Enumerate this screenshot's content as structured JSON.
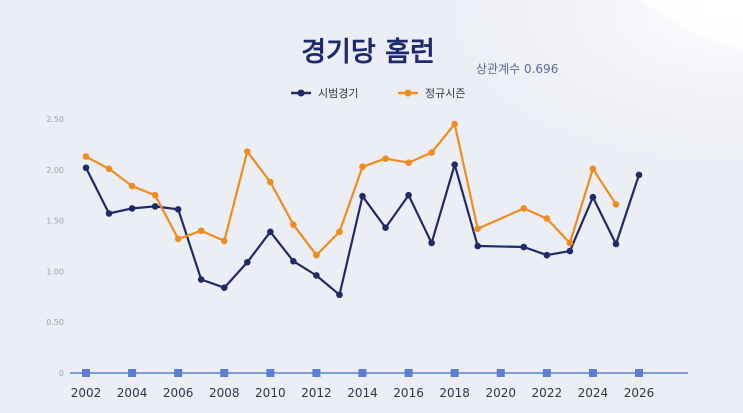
{
  "chart_data": {
    "type": "line",
    "title": "경기당 홈런",
    "subtitle": "상관계수 0.696",
    "legend_position": "top",
    "grid": false,
    "ylim": [
      0,
      2.5
    ],
    "y_ticks": [
      "0",
      "0.50",
      "1.00",
      "1.50",
      "2.00",
      "2.50"
    ],
    "x_ticks": [
      "2002",
      "2004",
      "2006",
      "2008",
      "2010",
      "2012",
      "2014",
      "2016",
      "2018",
      "2020",
      "2022",
      "2024",
      "2026"
    ],
    "x_tick_values": [
      2002,
      2004,
      2006,
      2008,
      2010,
      2012,
      2014,
      2016,
      2018,
      2020,
      2022,
      2024,
      2026
    ],
    "series": [
      {
        "name": "시범경기",
        "color": "#1f2a6b",
        "points": [
          [
            2002,
            2.02
          ],
          [
            2003,
            1.57
          ],
          [
            2004,
            1.62
          ],
          [
            2005,
            1.64
          ],
          [
            2006,
            1.61
          ],
          [
            2007,
            0.92
          ],
          [
            2008,
            0.84
          ],
          [
            2009,
            1.09
          ],
          [
            2010,
            1.39
          ],
          [
            2011,
            1.1
          ],
          [
            2012,
            0.96
          ],
          [
            2013,
            0.77
          ],
          [
            2014,
            1.74
          ],
          [
            2015,
            1.43
          ],
          [
            2016,
            1.75
          ],
          [
            2017,
            1.28
          ],
          [
            2018,
            2.05
          ],
          [
            2019,
            1.25
          ],
          [
            2021,
            1.24
          ],
          [
            2022,
            1.16
          ],
          [
            2023,
            1.2
          ],
          [
            2024,
            1.73
          ],
          [
            2025,
            1.27
          ],
          [
            2026,
            1.95
          ]
        ]
      },
      {
        "name": "정규시즌",
        "color": "#f08c1e",
        "points": [
          [
            2002,
            2.13
          ],
          [
            2003,
            2.01
          ],
          [
            2004,
            1.84
          ],
          [
            2005,
            1.75
          ],
          [
            2006,
            1.32
          ],
          [
            2007,
            1.4
          ],
          [
            2008,
            1.3
          ],
          [
            2009,
            2.18
          ],
          [
            2010,
            1.88
          ],
          [
            2011,
            1.46
          ],
          [
            2012,
            1.16
          ],
          [
            2013,
            1.39
          ],
          [
            2014,
            2.03
          ],
          [
            2015,
            2.11
          ],
          [
            2016,
            2.07
          ],
          [
            2017,
            2.17
          ],
          [
            2018,
            2.45
          ],
          [
            2019,
            1.42
          ],
          [
            2021,
            1.62
          ],
          [
            2022,
            1.52
          ],
          [
            2023,
            1.28
          ],
          [
            2024,
            2.01
          ],
          [
            2025,
            1.66
          ]
        ]
      }
    ]
  },
  "colors": {
    "axis_markers": "#5b7fd6",
    "title": "#1f2a6b",
    "tick_text": "#9aa0ad"
  }
}
